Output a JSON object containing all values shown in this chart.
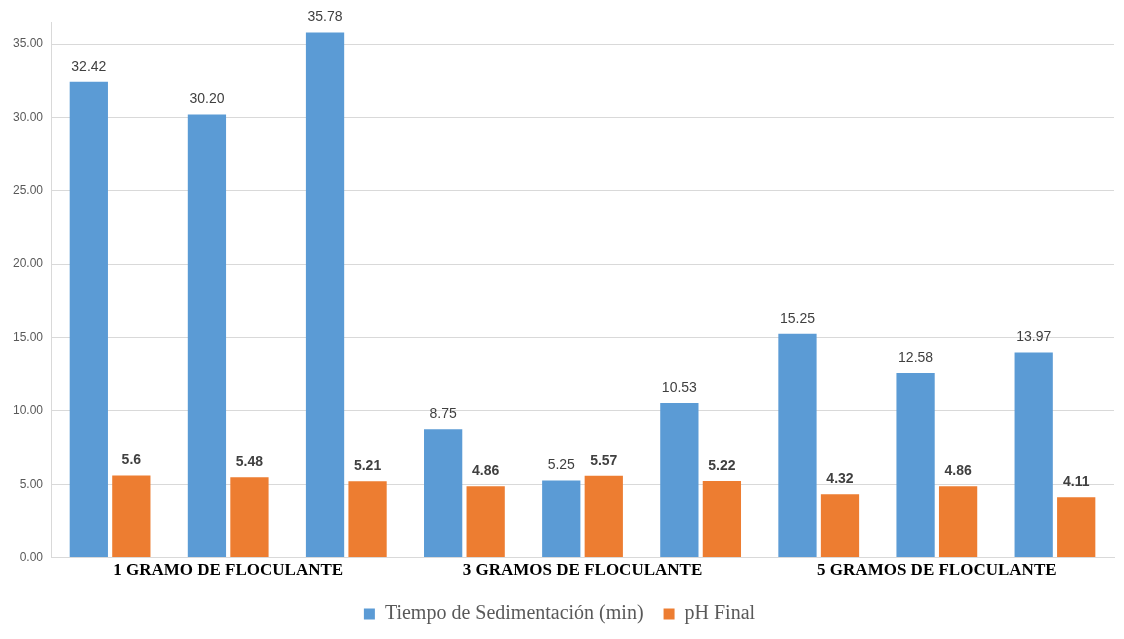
{
  "chart_data": {
    "type": "bar",
    "categories": [
      null,
      "1 GRAMO DE FLOCULANTE",
      null,
      null,
      "3 GRAMOS DE FLOCULANTE",
      null,
      null,
      "5 GRAMOS DE FLOCULANTE",
      null
    ],
    "series": [
      {
        "name": "Tiempo de Sedimentación (min)",
        "color": "#5b9bd5",
        "values": [
          32.42,
          30.2,
          35.78,
          8.75,
          5.25,
          10.53,
          15.25,
          12.58,
          13.97
        ],
        "value_labels": [
          "32.42",
          "30.20",
          "35.78",
          "8.75",
          "5.25",
          "10.53",
          "15.25",
          "12.58",
          "13.97"
        ]
      },
      {
        "name": "pH Final",
        "color": "#ed7d31",
        "values": [
          5.6,
          5.48,
          5.21,
          4.86,
          5.57,
          5.22,
          4.32,
          4.86,
          4.11
        ],
        "value_labels": [
          "5.6",
          "5.48",
          "5.21",
          "4.86",
          "5.57",
          "5.22",
          "4.32",
          "4.86",
          "4.11"
        ]
      }
    ],
    "ylim": [
      0,
      36.5
    ],
    "yticks": [
      {
        "value": 0,
        "label": "0.00"
      },
      {
        "value": 5,
        "label": "5.00"
      },
      {
        "value": 10,
        "label": "10.00"
      },
      {
        "value": 15,
        "label": "15.00"
      },
      {
        "value": 20,
        "label": "20.00"
      },
      {
        "value": 25,
        "label": "25.00"
      },
      {
        "value": 30,
        "label": "30.00"
      },
      {
        "value": 35,
        "label": "35.00"
      }
    ],
    "grid": "y",
    "legend": "bottom"
  }
}
